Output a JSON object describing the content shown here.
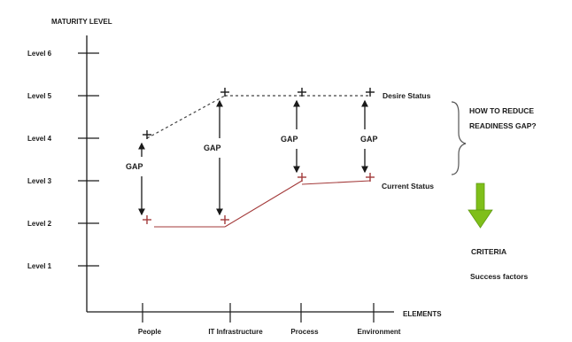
{
  "axis": {
    "y_title": "MATURITY LEVEL",
    "x_title": "ELEMENTS",
    "y_levels": [
      "Level 1",
      "Level 2",
      "Level 3",
      "Level 4",
      "Level 5",
      "Level 6"
    ],
    "x_elements": [
      "People",
      "IT Infrastructure",
      "Process",
      "Environment"
    ]
  },
  "gap_label": "GAP",
  "desire_status_label": "Desire Status",
  "current_status_label": "Current Status",
  "side_note": {
    "line1": "HOW TO REDUCE",
    "line2": "READINESS GAP?"
  },
  "criteria_label": "CRITERIA",
  "success_factors_label": "Success factors",
  "colors": {
    "axis": "#1a1a1a",
    "current_line": "#a33a3a",
    "desire_line": "#444444",
    "arrow": "#1a1a1a",
    "green_arrow": "#7fbf1a"
  },
  "chart_data": {
    "type": "line",
    "categories": [
      "People",
      "IT Infrastructure",
      "Process",
      "Environment"
    ],
    "series": [
      {
        "name": "Desire Status",
        "values": [
          4,
          5,
          5,
          5
        ]
      },
      {
        "name": "Current Status",
        "values": [
          2,
          2,
          3,
          3
        ]
      }
    ],
    "xlabel": "ELEMENTS",
    "ylabel": "MATURITY LEVEL",
    "yticks": [
      "Level 1",
      "Level 2",
      "Level 3",
      "Level 4",
      "Level 5",
      "Level 6"
    ],
    "ylim": [
      1,
      6
    ]
  }
}
